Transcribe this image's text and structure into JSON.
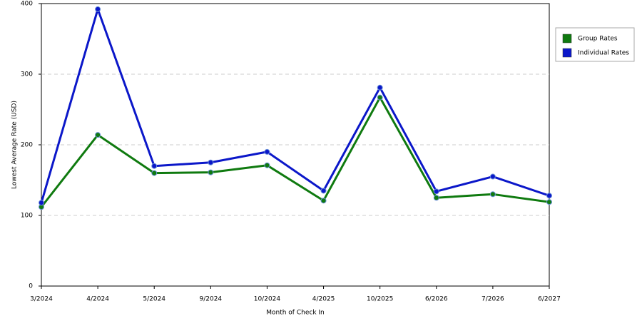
{
  "chart_data": {
    "type": "line",
    "x_label": "Month of Check In",
    "y_label": "Lowest Average Rate (USD)",
    "categories": [
      "3/2024",
      "4/2024",
      "5/2024",
      "9/2024",
      "10/2024",
      "4/2025",
      "10/2025",
      "6/2026",
      "7/2026",
      "6/2027"
    ],
    "series": [
      {
        "name": "Group Rates",
        "color": "#0f7a0f",
        "values": [
          112,
          214,
          160,
          161,
          171,
          121,
          267,
          125,
          130,
          119
        ]
      },
      {
        "name": "Individual Rates",
        "color": "#0b17c9",
        "values": [
          118,
          392,
          170,
          175,
          190,
          135,
          281,
          134,
          155,
          128
        ]
      }
    ],
    "ylim": [
      0,
      400
    ],
    "yticks": [
      0,
      100,
      200,
      300,
      400
    ],
    "grid": true,
    "legend": "right"
  }
}
